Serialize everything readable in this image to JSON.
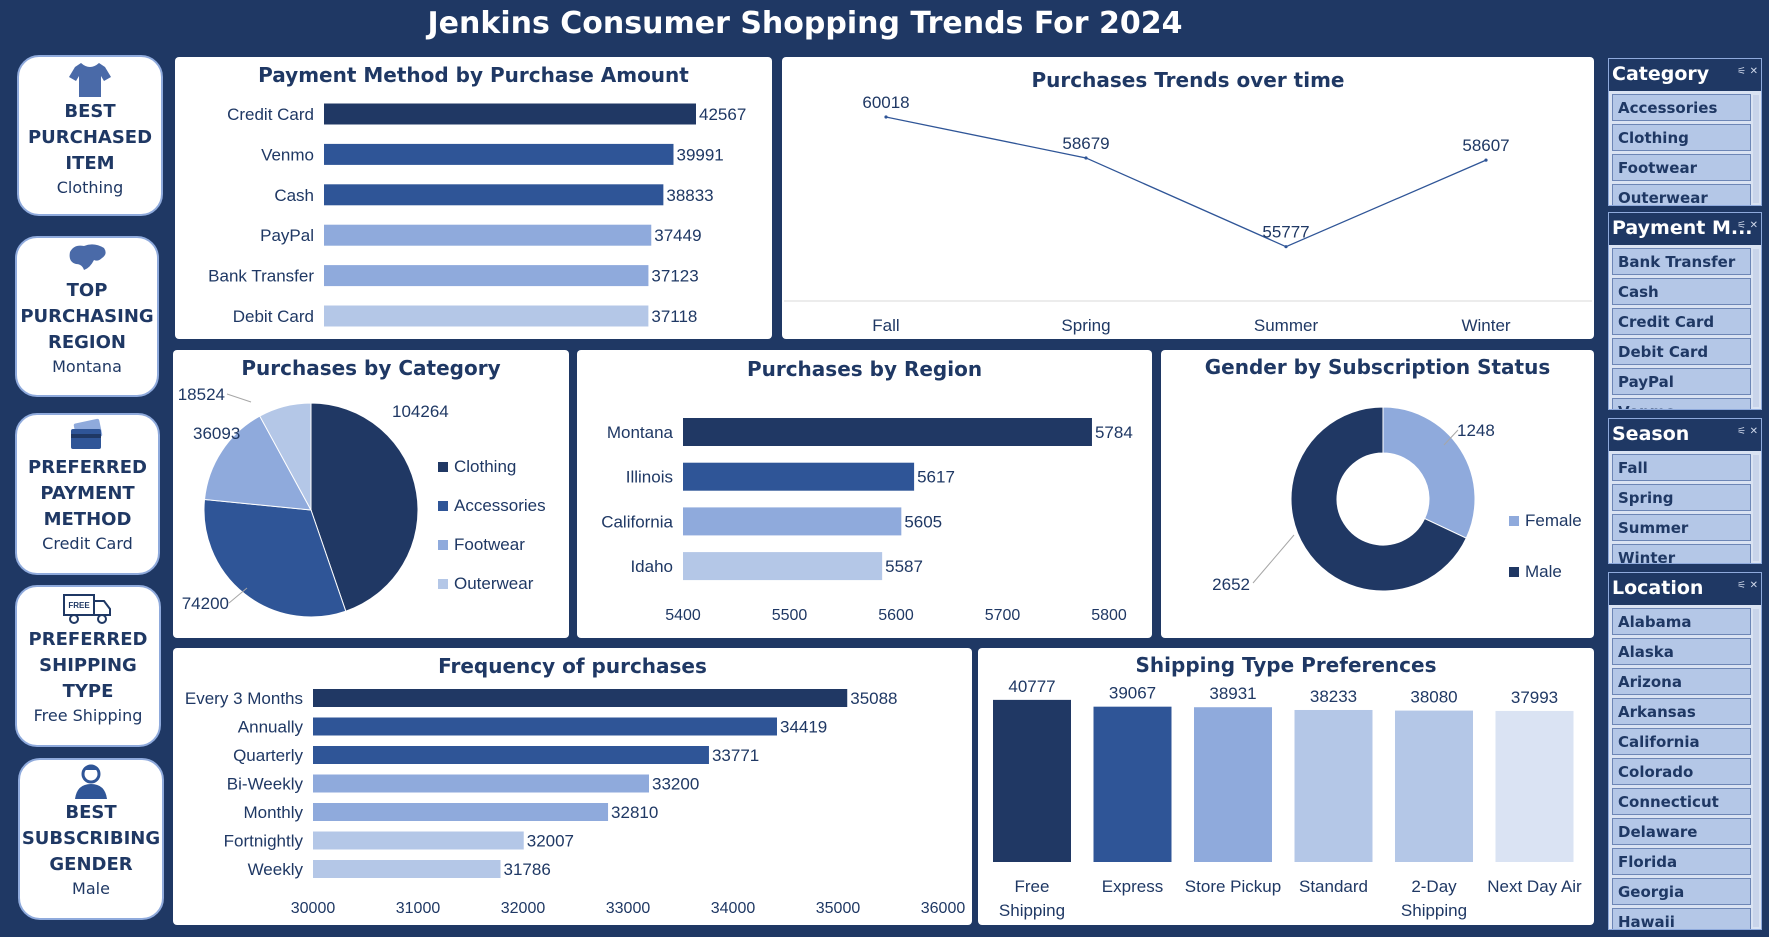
{
  "dashboard": {
    "title": "Jenkins Consumer Shopping Trends For 2024"
  },
  "colors": {
    "background": "#1f3864",
    "dark": "#203864",
    "mid": "#2f5597",
    "light": "#8faadc",
    "lighter": "#b4c7e7",
    "lightest": "#dae3f3"
  },
  "kpis": [
    {
      "label": "BEST\nPURCHASED\nITEM",
      "value": "Clothing",
      "icon": "shirt-icon"
    },
    {
      "label": "TOP\nPURCHASING\nREGION",
      "value": "Montana",
      "icon": "map-icon"
    },
    {
      "label": "PREFERRED\nPAYMENT\nMETHOD",
      "value": "Credit Card",
      "icon": "credit-card-icon"
    },
    {
      "label": "PREFERRED\nSHIPPING\nTYPE",
      "value": "Free Shipping",
      "icon": "delivery-truck-icon",
      "icon_text": "FREE"
    },
    {
      "label": "BEST\nSUBSCRIBING\nGENDER",
      "value": "Male",
      "icon": "person-icon"
    }
  ],
  "slicers": [
    {
      "title": "Category",
      "items": [
        "Accessories",
        "Clothing",
        "Footwear",
        "Outerwear"
      ]
    },
    {
      "title": "Payment M...",
      "items": [
        "Bank Transfer",
        "Cash",
        "Credit Card",
        "Debit Card",
        "PayPal",
        "Venmo"
      ]
    },
    {
      "title": "Season",
      "items": [
        "Fall",
        "Spring",
        "Summer",
        "Winter"
      ]
    },
    {
      "title": "Location",
      "items": [
        "Alabama",
        "Alaska",
        "Arizona",
        "Arkansas",
        "California",
        "Colorado",
        "Connecticut",
        "Delaware",
        "Florida",
        "Georgia",
        "Hawaii"
      ]
    }
  ],
  "chart_data": [
    {
      "id": "payment",
      "type": "bar",
      "orientation": "horizontal",
      "title": "Payment Method by Purchase Amount",
      "categories": [
        "Credit Card",
        "Venmo",
        "Cash",
        "PayPal",
        "Bank Transfer",
        "Debit Card"
      ],
      "values": [
        42567,
        39991,
        38833,
        37449,
        37123,
        37118
      ],
      "colors": [
        "#203864",
        "#2f5597",
        "#2f5597",
        "#8faadc",
        "#8faadc",
        "#b4c7e7"
      ]
    },
    {
      "id": "trends",
      "type": "line",
      "title": "Purchases Trends over time",
      "categories": [
        "Fall",
        "Spring",
        "Summer",
        "Winter"
      ],
      "values": [
        60018,
        58679,
        55777,
        58607
      ]
    },
    {
      "id": "category",
      "type": "pie",
      "title": "Purchases by Category",
      "labels": [
        "Clothing",
        "Accessories",
        "Footwear",
        "Outerwear"
      ],
      "values": [
        104264,
        74200,
        36093,
        18524
      ],
      "colors": [
        "#203864",
        "#2f5597",
        "#8faadc",
        "#b4c7e7"
      ],
      "legend": "right"
    },
    {
      "id": "region",
      "type": "bar",
      "orientation": "horizontal",
      "title": "Purchases by Region",
      "categories": [
        "Montana",
        "Illinois",
        "California",
        "Idaho"
      ],
      "values": [
        5784,
        5617,
        5605,
        5587
      ],
      "xlim": [
        5400,
        5800
      ],
      "xticks": [
        "5400",
        "5500",
        "5600",
        "5700",
        "5800"
      ],
      "colors": [
        "#203864",
        "#2f5597",
        "#8faadc",
        "#b4c7e7"
      ]
    },
    {
      "id": "gender",
      "type": "pie",
      "style": "donut",
      "title": "Gender by Subscription Status",
      "labels": [
        "Female",
        "Male"
      ],
      "values": [
        1248,
        2652
      ],
      "colors": [
        "#8faadc",
        "#203864"
      ],
      "legend": "right"
    },
    {
      "id": "frequency",
      "type": "bar",
      "orientation": "horizontal",
      "title": "Frequency of purchases",
      "categories": [
        "Every 3 Months",
        "Annually",
        "Quarterly",
        "Bi-Weekly",
        "Monthly",
        "Fortnightly",
        "Weekly"
      ],
      "values": [
        35088,
        34419,
        33771,
        33200,
        32810,
        32007,
        31786
      ],
      "xlim": [
        30000,
        36000
      ],
      "xticks": [
        "30000",
        "31000",
        "32000",
        "33000",
        "34000",
        "35000",
        "36000"
      ],
      "colors": [
        "#203864",
        "#2f5597",
        "#2f5597",
        "#8faadc",
        "#8faadc",
        "#b4c7e7",
        "#b4c7e7"
      ]
    },
    {
      "id": "shipping",
      "type": "bar",
      "orientation": "vertical",
      "title": "Shipping Type Preferences",
      "categories": [
        "Free Shipping",
        "Express",
        "Store Pickup",
        "Standard",
        "2-Day Shipping",
        "Next Day Air"
      ],
      "category_lines": [
        [
          "Free",
          "Shipping"
        ],
        [
          "Express"
        ],
        [
          "Store Pickup"
        ],
        [
          "Standard"
        ],
        [
          "2-Day",
          "Shipping"
        ],
        [
          "Next Day Air"
        ]
      ],
      "values": [
        40777,
        39067,
        38931,
        38233,
        38080,
        37993
      ],
      "colors": [
        "#203864",
        "#2f5597",
        "#8faadc",
        "#b4c7e7",
        "#b4c7e7",
        "#dae3f3"
      ]
    }
  ]
}
